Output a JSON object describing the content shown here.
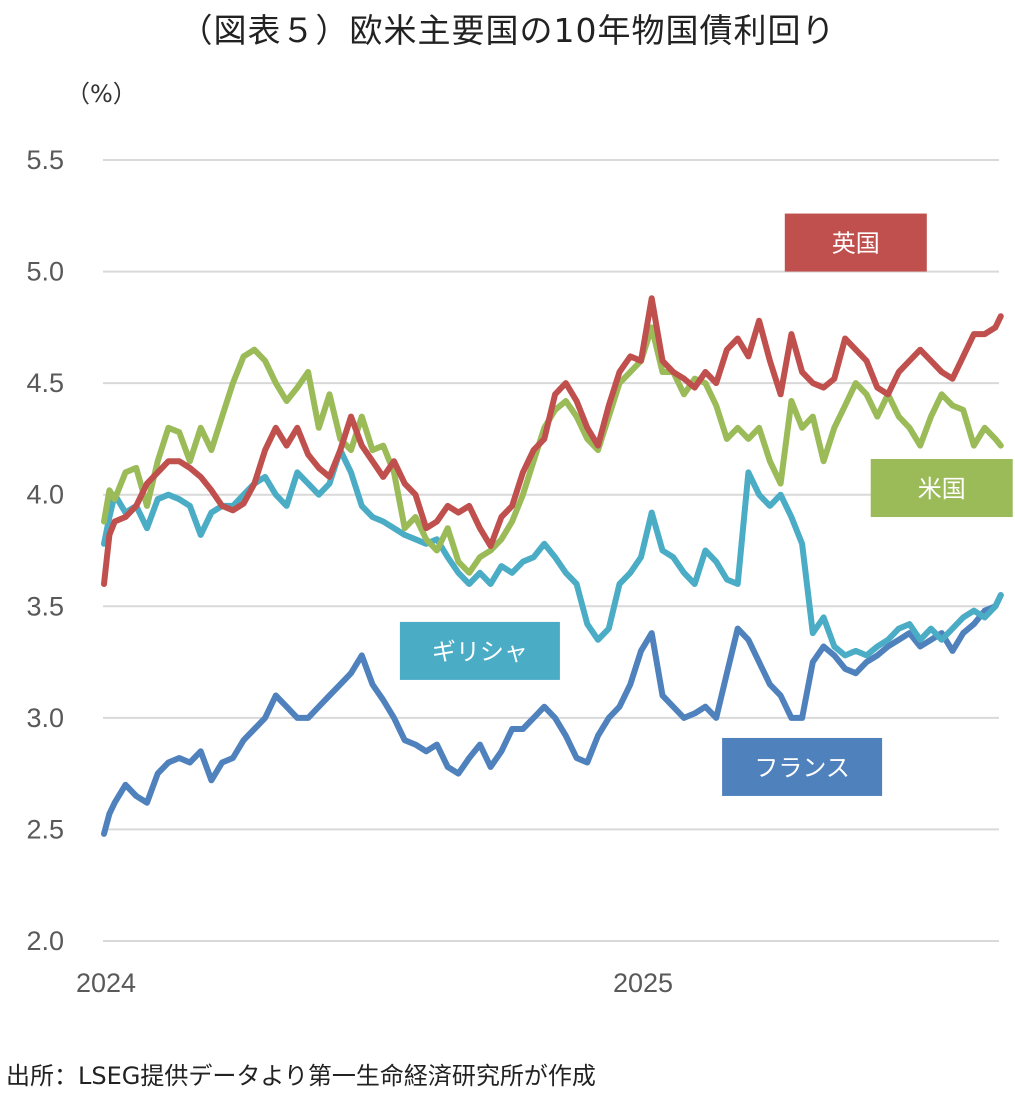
{
  "title": "（図表５）欧米主要国の10年物国債利回り",
  "unit_label": "（%）",
  "source": "出所：LSEG提供データより第一生命経済研究所が作成",
  "chart_data": {
    "type": "line",
    "title": "（図表５）欧米主要国の10年物国債利回り",
    "xlabel": "",
    "ylabel": "（%）",
    "ylim": [
      2.0,
      5.5
    ],
    "yticks": [
      "5.5",
      "5.0",
      "4.5",
      "4.0",
      "3.5",
      "3.0",
      "2.5",
      "2.0"
    ],
    "ytick_values": [
      5.5,
      5.0,
      4.5,
      4.0,
      3.5,
      3.0,
      2.5,
      2.0
    ],
    "xlim": [
      0,
      1.67
    ],
    "xticks": [
      {
        "label": "2024",
        "value": 0
      },
      {
        "label": "2025",
        "value": 1
      }
    ],
    "x_unit": "years since 2024-01-01",
    "grid": true,
    "legend": "inline-labels",
    "series": [
      {
        "name": "英国",
        "color": "#C0504D",
        "label_box": {
          "text": "英国",
          "anchor_x": 1.4,
          "anchor_y": 5.13
        },
        "x": [
          0,
          0.01,
          0.02,
          0.04,
          0.06,
          0.08,
          0.1,
          0.12,
          0.14,
          0.16,
          0.18,
          0.2,
          0.22,
          0.24,
          0.26,
          0.28,
          0.3,
          0.32,
          0.34,
          0.36,
          0.38,
          0.4,
          0.42,
          0.44,
          0.46,
          0.48,
          0.5,
          0.52,
          0.54,
          0.56,
          0.58,
          0.6,
          0.62,
          0.64,
          0.66,
          0.68,
          0.7,
          0.72,
          0.74,
          0.76,
          0.78,
          0.8,
          0.82,
          0.84,
          0.86,
          0.88,
          0.9,
          0.92,
          0.94,
          0.96,
          0.98,
          1.0,
          1.02,
          1.04,
          1.06,
          1.08,
          1.1,
          1.12,
          1.14,
          1.16,
          1.18,
          1.2,
          1.22,
          1.24,
          1.26,
          1.28,
          1.3,
          1.32,
          1.34,
          1.36,
          1.38,
          1.4,
          1.42,
          1.44,
          1.46,
          1.48,
          1.5,
          1.52,
          1.54,
          1.56,
          1.58,
          1.6,
          1.62,
          1.64,
          1.66,
          1.67
        ],
        "values": [
          3.6,
          3.82,
          3.88,
          3.9,
          3.95,
          4.05,
          4.1,
          4.15,
          4.15,
          4.12,
          4.08,
          4.02,
          3.95,
          3.93,
          3.96,
          4.05,
          4.2,
          4.3,
          4.22,
          4.3,
          4.18,
          4.12,
          4.08,
          4.2,
          4.35,
          4.22,
          4.15,
          4.08,
          4.15,
          4.05,
          4.0,
          3.85,
          3.88,
          3.95,
          3.92,
          3.95,
          3.85,
          3.77,
          3.9,
          3.95,
          4.1,
          4.2,
          4.25,
          4.45,
          4.5,
          4.42,
          4.3,
          4.22,
          4.4,
          4.55,
          4.62,
          4.6,
          4.88,
          4.6,
          4.55,
          4.52,
          4.48,
          4.55,
          4.5,
          4.65,
          4.7,
          4.62,
          4.78,
          4.6,
          4.45,
          4.72,
          4.55,
          4.5,
          4.48,
          4.52,
          4.7,
          4.65,
          4.6,
          4.48,
          4.45,
          4.55,
          4.6,
          4.65,
          4.6,
          4.55,
          4.52,
          4.62,
          4.72,
          4.72,
          4.75,
          4.8
        ]
      },
      {
        "name": "米国",
        "color": "#9BBB59",
        "label_box": {
          "text": "米国",
          "anchor_x": 1.56,
          "anchor_y": 4.03
        },
        "x": [
          0,
          0.01,
          0.02,
          0.04,
          0.06,
          0.08,
          0.1,
          0.12,
          0.14,
          0.16,
          0.18,
          0.2,
          0.22,
          0.24,
          0.26,
          0.28,
          0.3,
          0.32,
          0.34,
          0.36,
          0.38,
          0.4,
          0.42,
          0.44,
          0.46,
          0.48,
          0.5,
          0.52,
          0.54,
          0.56,
          0.58,
          0.6,
          0.62,
          0.64,
          0.66,
          0.68,
          0.7,
          0.72,
          0.74,
          0.76,
          0.78,
          0.8,
          0.82,
          0.84,
          0.86,
          0.88,
          0.9,
          0.92,
          0.94,
          0.96,
          0.98,
          1.0,
          1.02,
          1.04,
          1.06,
          1.08,
          1.1,
          1.12,
          1.14,
          1.16,
          1.18,
          1.2,
          1.22,
          1.24,
          1.26,
          1.28,
          1.3,
          1.32,
          1.34,
          1.36,
          1.38,
          1.4,
          1.42,
          1.44,
          1.46,
          1.48,
          1.5,
          1.52,
          1.54,
          1.56,
          1.58,
          1.6,
          1.62,
          1.64,
          1.66,
          1.67
        ],
        "values": [
          3.88,
          4.02,
          3.98,
          4.1,
          4.12,
          3.95,
          4.15,
          4.3,
          4.28,
          4.15,
          4.3,
          4.2,
          4.35,
          4.5,
          4.62,
          4.65,
          4.6,
          4.5,
          4.42,
          4.48,
          4.55,
          4.3,
          4.45,
          4.25,
          4.2,
          4.35,
          4.2,
          4.22,
          4.1,
          3.85,
          3.9,
          3.8,
          3.75,
          3.85,
          3.7,
          3.65,
          3.72,
          3.75,
          3.8,
          3.88,
          4.0,
          4.15,
          4.3,
          4.38,
          4.42,
          4.35,
          4.25,
          4.2,
          4.35,
          4.5,
          4.55,
          4.6,
          4.75,
          4.55,
          4.55,
          4.45,
          4.52,
          4.5,
          4.4,
          4.25,
          4.3,
          4.25,
          4.3,
          4.15,
          4.05,
          4.42,
          4.3,
          4.35,
          4.15,
          4.3,
          4.4,
          4.5,
          4.45,
          4.35,
          4.45,
          4.35,
          4.3,
          4.22,
          4.35,
          4.45,
          4.4,
          4.38,
          4.22,
          4.3,
          4.25,
          4.22
        ]
      },
      {
        "name": "ギリシャ",
        "color": "#4BACC6",
        "label_box": {
          "text": "ギリシャ",
          "anchor_x": 0.7,
          "anchor_y": 3.3
        },
        "x": [
          0,
          0.01,
          0.02,
          0.04,
          0.06,
          0.08,
          0.1,
          0.12,
          0.14,
          0.16,
          0.18,
          0.2,
          0.22,
          0.24,
          0.26,
          0.28,
          0.3,
          0.32,
          0.34,
          0.36,
          0.38,
          0.4,
          0.42,
          0.44,
          0.46,
          0.48,
          0.5,
          0.52,
          0.54,
          0.56,
          0.58,
          0.6,
          0.62,
          0.64,
          0.66,
          0.68,
          0.7,
          0.72,
          0.74,
          0.76,
          0.78,
          0.8,
          0.82,
          0.84,
          0.86,
          0.88,
          0.9,
          0.92,
          0.94,
          0.96,
          0.98,
          1.0,
          1.02,
          1.04,
          1.06,
          1.08,
          1.1,
          1.12,
          1.14,
          1.16,
          1.18,
          1.2,
          1.22,
          1.24,
          1.26,
          1.28,
          1.3,
          1.32,
          1.34,
          1.36,
          1.38,
          1.4,
          1.42,
          1.44,
          1.46,
          1.48,
          1.5,
          1.52,
          1.54,
          1.56,
          1.58,
          1.6,
          1.62,
          1.64,
          1.66,
          1.67
        ],
        "values": [
          3.78,
          3.9,
          4.0,
          3.92,
          3.95,
          3.85,
          3.98,
          4.0,
          3.98,
          3.95,
          3.82,
          3.92,
          3.95,
          3.95,
          4.0,
          4.05,
          4.08,
          4.0,
          3.95,
          4.1,
          4.05,
          4.0,
          4.05,
          4.2,
          4.1,
          3.95,
          3.9,
          3.88,
          3.85,
          3.82,
          3.8,
          3.78,
          3.8,
          3.72,
          3.65,
          3.6,
          3.65,
          3.6,
          3.68,
          3.65,
          3.7,
          3.72,
          3.78,
          3.72,
          3.65,
          3.6,
          3.42,
          3.35,
          3.4,
          3.6,
          3.65,
          3.72,
          3.92,
          3.75,
          3.72,
          3.65,
          3.6,
          3.75,
          3.7,
          3.62,
          3.6,
          4.1,
          4.0,
          3.95,
          4.0,
          3.9,
          3.78,
          3.38,
          3.45,
          3.32,
          3.28,
          3.3,
          3.28,
          3.32,
          3.35,
          3.4,
          3.42,
          3.35,
          3.4,
          3.35,
          3.4,
          3.45,
          3.48,
          3.45,
          3.5,
          3.55
        ]
      },
      {
        "name": "フランス",
        "color": "#4F81BD",
        "label_box": {
          "text": "フランス",
          "anchor_x": 1.3,
          "anchor_y": 2.78
        },
        "x": [
          0,
          0.01,
          0.02,
          0.04,
          0.06,
          0.08,
          0.1,
          0.12,
          0.14,
          0.16,
          0.18,
          0.2,
          0.22,
          0.24,
          0.26,
          0.28,
          0.3,
          0.32,
          0.34,
          0.36,
          0.38,
          0.4,
          0.42,
          0.44,
          0.46,
          0.48,
          0.5,
          0.52,
          0.54,
          0.56,
          0.58,
          0.6,
          0.62,
          0.64,
          0.66,
          0.68,
          0.7,
          0.72,
          0.74,
          0.76,
          0.78,
          0.8,
          0.82,
          0.84,
          0.86,
          0.88,
          0.9,
          0.92,
          0.94,
          0.96,
          0.98,
          1.0,
          1.02,
          1.04,
          1.06,
          1.08,
          1.1,
          1.12,
          1.14,
          1.16,
          1.18,
          1.2,
          1.22,
          1.24,
          1.26,
          1.28,
          1.3,
          1.32,
          1.34,
          1.36,
          1.38,
          1.4,
          1.42,
          1.44,
          1.46,
          1.48,
          1.5,
          1.52,
          1.54,
          1.56,
          1.58,
          1.6,
          1.62,
          1.64,
          1.66,
          1.67
        ],
        "values": [
          2.48,
          2.57,
          2.62,
          2.7,
          2.65,
          2.62,
          2.75,
          2.8,
          2.82,
          2.8,
          2.85,
          2.72,
          2.8,
          2.82,
          2.9,
          2.95,
          3.0,
          3.1,
          3.05,
          3.0,
          3.0,
          3.05,
          3.1,
          3.15,
          3.2,
          3.28,
          3.15,
          3.08,
          3.0,
          2.9,
          2.88,
          2.85,
          2.88,
          2.78,
          2.75,
          2.82,
          2.88,
          2.78,
          2.85,
          2.95,
          2.95,
          3.0,
          3.05,
          3.0,
          2.92,
          2.82,
          2.8,
          2.92,
          3.0,
          3.05,
          3.15,
          3.3,
          3.38,
          3.1,
          3.05,
          3.0,
          3.02,
          3.05,
          3.0,
          3.2,
          3.4,
          3.35,
          3.25,
          3.15,
          3.1,
          3.0,
          3.0,
          3.25,
          3.32,
          3.28,
          3.22,
          3.2,
          3.25,
          3.28,
          3.32,
          3.35,
          3.38,
          3.32,
          3.35,
          3.38,
          3.3,
          3.38,
          3.42,
          3.48,
          3.5,
          3.55
        ]
      }
    ]
  }
}
